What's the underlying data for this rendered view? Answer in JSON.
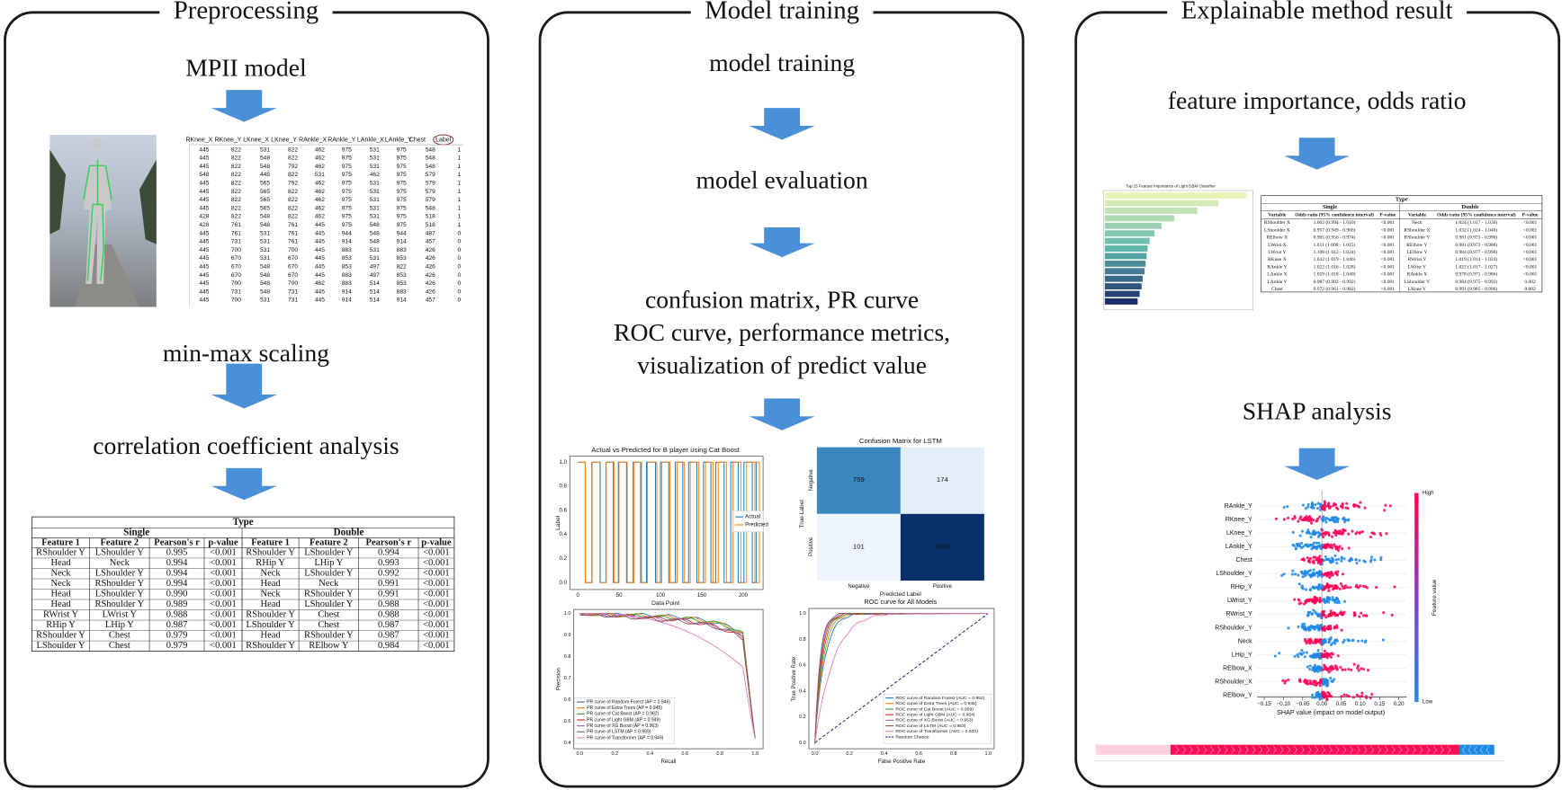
{
  "panels": [
    {
      "title": "Preprocessing",
      "steps": [
        "MPII model",
        "min-max scaling",
        "correlation coefficient analysis"
      ],
      "keypoint_table": {
        "header": [
          "RKnee_X",
          "RKnee_Y",
          "LKnee_X",
          "LKnee_Y",
          "RAnkle_X",
          "RAnkle_Y",
          "LAnkle_X",
          "LAnkle_Y",
          "Chest",
          "Label"
        ],
        "rows": [
          [
            445,
            822,
            531,
            822,
            462,
            975,
            531,
            975,
            548,
            1
          ],
          [
            445,
            822,
            548,
            822,
            462,
            975,
            531,
            975,
            548,
            1
          ],
          [
            445,
            822,
            548,
            792,
            462,
            975,
            531,
            975,
            548,
            1
          ],
          [
            548,
            822,
            445,
            822,
            531,
            975,
            462,
            975,
            579,
            1
          ],
          [
            445,
            822,
            565,
            792,
            462,
            975,
            531,
            975,
            579,
            1
          ],
          [
            445,
            822,
            565,
            822,
            462,
            975,
            531,
            975,
            579,
            1
          ],
          [
            445,
            822,
            565,
            822,
            462,
            975,
            531,
            975,
            579,
            1
          ],
          [
            445,
            822,
            565,
            822,
            462,
            975,
            531,
            975,
            548,
            1
          ],
          [
            428,
            822,
            548,
            822,
            462,
            975,
            531,
            975,
            518,
            1
          ],
          [
            428,
            761,
            548,
            761,
            445,
            975,
            548,
            975,
            518,
            1
          ],
          [
            445,
            761,
            531,
            761,
            445,
            944,
            548,
            944,
            487,
            0
          ],
          [
            445,
            731,
            531,
            761,
            445,
            914,
            548,
            914,
            457,
            0
          ],
          [
            445,
            700,
            531,
            700,
            445,
            883,
            531,
            883,
            426,
            0
          ],
          [
            445,
            670,
            531,
            670,
            445,
            853,
            531,
            853,
            426,
            0
          ],
          [
            445,
            670,
            548,
            670,
            445,
            853,
            497,
            822,
            426,
            0
          ],
          [
            445,
            670,
            548,
            670,
            445,
            883,
            497,
            853,
            426,
            0
          ],
          [
            445,
            700,
            548,
            700,
            462,
            883,
            514,
            853,
            426,
            0
          ],
          [
            445,
            731,
            548,
            731,
            445,
            914,
            514,
            883,
            426,
            0
          ],
          [
            445,
            700,
            531,
            731,
            445,
            914,
            514,
            914,
            457,
            0
          ]
        ]
      },
      "correlation_table": {
        "group_title": "Type",
        "groups": [
          "Single",
          "Double"
        ],
        "columns": [
          "Feature 1",
          "Feature 2",
          "Pearson's r",
          "p-value",
          "Feature 1",
          "Feature 2",
          "Pearson's r",
          "p-value"
        ],
        "rows": [
          [
            "RShoulder Y",
            "LShoulder Y",
            "0.995",
            "<0.001",
            "RShoulder Y",
            "LShoulder Y",
            "0.994",
            "<0.001"
          ],
          [
            "Head",
            "Neck",
            "0.994",
            "<0.001",
            "RHip Y",
            "LHip Y",
            "0.993",
            "<0.001"
          ],
          [
            "Neck",
            "LShoulder Y",
            "0.994",
            "<0.001",
            "Neck",
            "LShoulder Y",
            "0.992",
            "<0.001"
          ],
          [
            "Neck",
            "RShoulder Y",
            "0.994",
            "<0.001",
            "Head",
            "Neck",
            "0.991",
            "<0.001"
          ],
          [
            "Head",
            "LShoulder Y",
            "0.990",
            "<0.001",
            "Neck",
            "RShoulder Y",
            "0.991",
            "<0.001"
          ],
          [
            "Head",
            "RShoulder Y",
            "0.989",
            "<0.001",
            "Head",
            "LShoulder Y",
            "0.988",
            "<0.001"
          ],
          [
            "RWrist Y",
            "LWrist Y",
            "0.988",
            "<0.001",
            "RShoulder Y",
            "Chest",
            "0.988",
            "<0.001"
          ],
          [
            "RHip Y",
            "LHip Y",
            "0.987",
            "<0.001",
            "LShoulder Y",
            "Chest",
            "0.987",
            "<0.001"
          ],
          [
            "RShoulder Y",
            "Chest",
            "0.979",
            "<0.001",
            "Head",
            "RShoulder Y",
            "0.987",
            "<0.001"
          ],
          [
            "LShoulder Y",
            "Chest",
            "0.979",
            "<0.001",
            "RShoulder Y",
            "RElbow Y",
            "0.984",
            "<0.001"
          ]
        ]
      }
    },
    {
      "title": "Model training",
      "steps": [
        "model training",
        "model evaluation",
        "confusion matrix, PR curve",
        "ROC curve, performance metrics,",
        "visualization of predict value"
      ],
      "line_chart": {
        "title": "Actual vs Predicted for B player using Cat Boost",
        "x_label": "Data Point",
        "y_label": "Label",
        "xticks": [
          "0",
          "50",
          "100",
          "150",
          "200"
        ],
        "yticks": [
          "0.0",
          "0.2",
          "0.4",
          "0.6",
          "0.8",
          "1.0"
        ],
        "series": [
          {
            "name": "Actual",
            "color": "#1f77b4"
          },
          {
            "name": "Predicted",
            "color": "#ff7f0e"
          }
        ]
      },
      "confusion_matrix": {
        "title": "Confusion Matrix for LSTM",
        "labels": [
          "Negative",
          "Positive"
        ],
        "x_label": "Predicted Label",
        "y_label": "True Label",
        "cells": [
          [
            "759",
            "174"
          ],
          [
            "101",
            "1085"
          ]
        ]
      },
      "pr_chart": {
        "x_label": "Recall",
        "y_label": "Precision",
        "xticks": [
          "0.0",
          "0.2",
          "0.4",
          "0.6",
          "0.8",
          "1.0"
        ],
        "yticks": [
          "0.4",
          "0.5",
          "0.6",
          "0.7",
          "0.8",
          "0.9",
          "1.0"
        ],
        "series": [
          {
            "name": "PR curve of Random Forest (AP = 0.946)",
            "color": "#1f77b4"
          },
          {
            "name": "PR curve of Extra Trees (AP = 0.945)",
            "color": "#ff7f0e"
          },
          {
            "name": "PR curve of Cat Boost (AP = 0.962)",
            "color": "#2ca02c"
          },
          {
            "name": "PR curve of Light GBM (AP = 0.949)",
            "color": "#d62728"
          },
          {
            "name": "PR curve of XG Boost (AP = 0.963)",
            "color": "#9467bd"
          },
          {
            "name": "PR curve of LSTM (AP = 0.959)",
            "color": "#8c564b"
          },
          {
            "name": "PR curve of Transformer (AP = 0.949)",
            "color": "#e377c2"
          }
        ]
      },
      "roc_chart": {
        "title": "ROC curve for All Models",
        "x_label": "False Positive Rate",
        "y_label": "True Positive Rate",
        "xticks": [
          "0.0",
          "0.2",
          "0.4",
          "0.6",
          "0.8",
          "1.0"
        ],
        "yticks": [
          "0.0",
          "0.2",
          "0.4",
          "0.6",
          "0.8",
          "1.0"
        ],
        "series": [
          {
            "name": "ROC curve of Random Forest (AUC = 0.952)",
            "color": "#1f77b4"
          },
          {
            "name": "ROC curve of Extra Trees (AUC = 0.945)",
            "color": "#ff7f0e"
          },
          {
            "name": "ROC curve of Cat Boost (AUC = 0.959)",
            "color": "#2ca02c"
          },
          {
            "name": "ROC curve of Light GBM (AUC = 0.954)",
            "color": "#d62728"
          },
          {
            "name": "ROC curve of XG Boost (AUC = 0.953)",
            "color": "#9467bd"
          },
          {
            "name": "ROC curve of LSTM (AUC = 0.953)",
            "color": "#8c564b"
          },
          {
            "name": "ROC curve of Transformer (AUC = 0.933)",
            "color": "#e377c2"
          }
        ],
        "chance": {
          "name": "Random Chance",
          "color": "#1a237e"
        }
      }
    },
    {
      "title": "Explainable method result",
      "steps": [
        "feature importance, odds ratio",
        "SHAP analysis"
      ],
      "importance_chart": {
        "title": "Top 15 Feature Importance of Light GBM Classifier"
      },
      "odds_table": {
        "group_title": "Type",
        "groups": [
          "Single",
          "Double"
        ],
        "columns": [
          "Variable",
          "Odds ratio (95% confidence interval)",
          "P-value",
          "Variable",
          "Odds ratio (95% confidence interval)",
          "P-value"
        ],
        "rows": [
          [
            "RShoulder X",
            "1.002 (0.994 - 1.010)",
            "<0.001",
            "Neck",
            "1.024 (1.017 - 1.030)",
            "<0.001"
          ],
          [
            "LShoulder X",
            "0.957 (0.949 - 0.966)",
            "<0.001",
            "RShoulder X",
            "1.032 (1.024 - 1.040)",
            "<0.001"
          ],
          [
            "RElbow X",
            "0.965 (0.956 - 0.974)",
            "<0.001",
            "RShoulder Y",
            "0.981 (0.973 - 0.990)",
            "<0.001"
          ],
          [
            "LWrist X",
            "1.011 (1.008 - 1.015)",
            "<0.001",
            "RElbow Y",
            "0.981 (0.973 - 0.988)",
            "<0.001"
          ],
          [
            "LWrist Y",
            "1.108 (1.012 - 1.024)",
            "<0.001",
            "LElbow Y",
            "0.984 (0.977 - 0.990)",
            "<0.001"
          ],
          [
            "RKnee X",
            "1.032 (1.019 - 1.046)",
            "<0.001",
            "RWrist Y",
            "1.019 (1.014 - 1.024)",
            "<0.001"
          ],
          [
            "RAnkle Y",
            "1.022 (1.016 - 1.028)",
            "<0.001",
            "LWrist Y",
            "1.022 (1.017 - 1.027)",
            "<0.001"
          ],
          [
            "LAnkle X",
            "1.029 (1.018 - 1.040)",
            "<0.001",
            "RAnkle X",
            "0.978 (0.971 - 0.986)",
            "<0.001"
          ],
          [
            "LAnkle Y",
            "0.987 (0.982 - 0.992)",
            "<0.001",
            "LShoulder Y",
            "0.984 (0.975 - 0.992)",
            "0.002"
          ],
          [
            "Chest",
            "0.972 (0.961 - 0.982)",
            "<0.001",
            "LKnee Y",
            "0.991 (0.985 - 0.996)",
            "0.002"
          ]
        ]
      },
      "shap_plot": {
        "features": [
          "RAnkle_Y",
          "RKnee_Y",
          "LKnee_Y",
          "LAnkle_Y",
          "Chest",
          "LShoulder_Y",
          "RHip_Y",
          "LWrist_Y",
          "RWrist_Y",
          "RShoulder_Y",
          "Neck",
          "LHip_Y",
          "RElbow_X",
          "RShoulder_X",
          "RElbow_Y"
        ],
        "xticks": [
          "−0.15",
          "−0.10",
          "−0.05",
          "0.00",
          "0.05",
          "0.10",
          "0.15",
          "0.20"
        ],
        "x_label": "SHAP value (impact on model output)",
        "colorbar_label": "Feature value",
        "high": "High",
        "low": "Low"
      }
    }
  ]
}
